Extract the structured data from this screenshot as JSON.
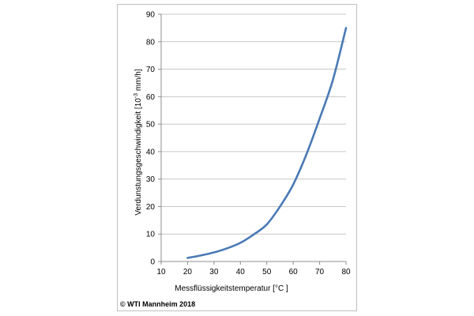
{
  "chart_data": {
    "type": "line",
    "title": "",
    "xlabel": "Messflüssigkeitstemperatur [°C ]",
    "ylabel": "Verdunstungsgeschwindigkeit  [10",
    "ylabel_superscript": "-3",
    "ylabel_suffix": " mm/h]",
    "xlim": [
      10,
      80
    ],
    "ylim": [
      0,
      90
    ],
    "x_ticks": [
      10,
      20,
      30,
      40,
      50,
      60,
      70,
      80
    ],
    "y_ticks": [
      0,
      10,
      20,
      30,
      40,
      50,
      60,
      70,
      80,
      90
    ],
    "grid": "horizontal",
    "legend": "none",
    "series": [
      {
        "color": "#4a7ab5",
        "x": [
          20,
          25,
          30,
          35,
          40,
          45,
          50,
          55,
          60,
          65,
          70,
          75,
          80
        ],
        "y": [
          1.3,
          2.2,
          3.3,
          4.8,
          6.8,
          9.8,
          13.5,
          20,
          28,
          39,
          52,
          66,
          85
        ]
      }
    ]
  },
  "copyright": "© WTI Mannheim 2018"
}
